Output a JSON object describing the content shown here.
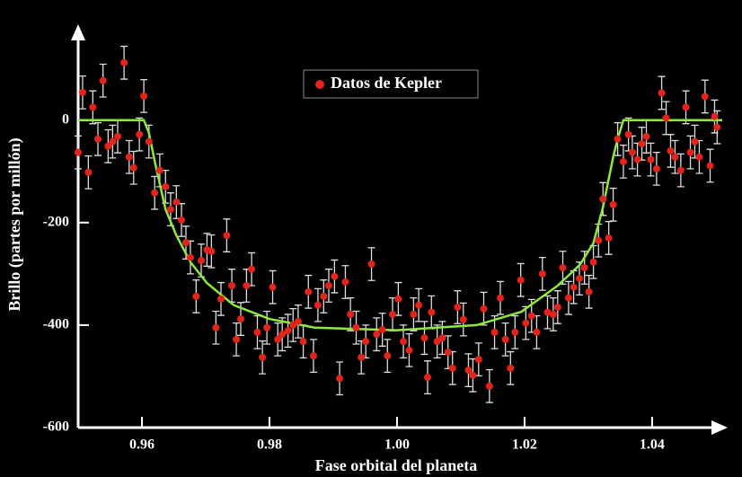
{
  "chart_data": {
    "type": "scatter",
    "x_label": "Fase orbital del planeta",
    "y_label": "Brillo (partes por millón)",
    "xlim": [
      0.95,
      1.051
    ],
    "ylim": [
      -600,
      180
    ],
    "xticks": [
      0.96,
      0.98,
      {
        "value": 1,
        "label": "1.00"
      },
      1.02,
      1.04
    ],
    "yticks": [
      -600,
      -400,
      -200,
      0
    ],
    "legend": "top",
    "series": [
      {
        "name": "Datos de Kepler",
        "color": "#e3241b",
        "error": 32,
        "x": [
          0.95,
          0.9507,
          0.9516,
          0.9523,
          0.9531,
          0.9539,
          0.9547,
          0.9554,
          0.9562,
          0.9572,
          0.958,
          0.9587,
          0.9596,
          0.9603,
          0.9611,
          0.962,
          0.9628,
          0.9637,
          0.9645,
          0.9654,
          0.9662,
          0.9669,
          0.9676,
          0.9685,
          0.9693,
          0.9702,
          0.9709,
          0.9716,
          0.9724,
          0.9733,
          0.9741,
          0.9748,
          0.9755,
          0.9764,
          0.9772,
          0.9781,
          0.9789,
          0.9796,
          0.9805,
          0.9813,
          0.982,
          0.9829,
          0.9837,
          0.9845,
          0.9853,
          0.9861,
          0.9869,
          0.9876,
          0.9885,
          0.9893,
          0.9902,
          0.991,
          0.9919,
          0.9927,
          0.9936,
          0.9944,
          0.9951,
          0.996,
          0.9968,
          0.9977,
          0.9985,
          0.9993,
          1.0002,
          1.001,
          1.0019,
          1.0026,
          1.0034,
          1.0043,
          1.0048,
          1.0054,
          1.0063,
          1.0071,
          1.008,
          1.0087,
          1.0095,
          1.0104,
          1.0112,
          1.0119,
          1.0128,
          1.0136,
          1.0145,
          1.0153,
          1.0162,
          1.017,
          1.0178,
          1.0185,
          1.0194,
          1.0202,
          1.0211,
          1.0219,
          1.0228,
          1.0236,
          1.0245,
          1.0252,
          1.026,
          1.0269,
          1.0277,
          1.0286,
          1.0294,
          1.0301,
          1.0308,
          1.0316,
          1.0323,
          1.0332,
          1.0339,
          1.0346,
          1.0355,
          1.0363,
          1.0369,
          1.0377,
          1.0384,
          1.0391,
          1.0398,
          1.0407,
          1.0415,
          1.0422,
          1.0429,
          1.0436,
          1.0445,
          1.0453,
          1.046,
          1.0467,
          1.0474,
          1.0483,
          1.0491,
          1.0498,
          1.0502
        ],
        "values": [
          -63,
          54,
          -102,
          25,
          -37,
          77,
          -51,
          -42,
          -32,
          112,
          -72,
          -93,
          -28,
          47,
          -42,
          -142,
          -98,
          -130,
          -174,
          -160,
          -195,
          -239,
          -268,
          -344,
          -274,
          -253,
          -256,
          -405,
          -349,
          -225,
          -323,
          -428,
          -388,
          -323,
          -291,
          -414,
          -463,
          -405,
          -326,
          -428,
          -418,
          -411,
          -400,
          -393,
          -432,
          -335,
          -460,
          -361,
          -344,
          -323,
          -305,
          -504,
          -316,
          -379,
          -405,
          -463,
          -432,
          -281,
          -418,
          -409,
          -460,
          -379,
          -349,
          -432,
          -449,
          -379,
          -361,
          -425,
          -502,
          -375,
          -432,
          -425,
          -453,
          -484,
          -365,
          -389,
          -488,
          -498,
          -467,
          -368,
          -519,
          -414,
          -347,
          -428,
          -484,
          -414,
          -312,
          -396,
          -382,
          -414,
          -300,
          -375,
          -379,
          -365,
          -288,
          -347,
          -326,
          -309,
          -288,
          -335,
          -277,
          -235,
          -154,
          -230,
          -165,
          -37,
          -81,
          -28,
          -63,
          -77,
          -46,
          -32,
          -77,
          -95,
          53,
          4,
          -60,
          -72,
          -98,
          25,
          -63,
          -42,
          -72,
          46,
          -89,
          7,
          -14
        ]
      }
    ],
    "line": {
      "color": "#8fe83c",
      "x": [
        0.95,
        0.9603,
        0.9611,
        0.962,
        0.9637,
        0.9654,
        0.9676,
        0.9702,
        0.9744,
        0.98,
        0.9871,
        1.0,
        1.0125,
        1.0195,
        1.0252,
        1.0287,
        1.0308,
        1.0323,
        1.0339,
        1.0346,
        1.0355,
        1.051
      ],
      "values": [
        0,
        0,
        -25,
        -80,
        -174,
        -225,
        -277,
        -318,
        -361,
        -388,
        -405,
        -410,
        -400,
        -374,
        -323,
        -282,
        -240,
        -170,
        -72,
        -37,
        0,
        0
      ]
    }
  }
}
